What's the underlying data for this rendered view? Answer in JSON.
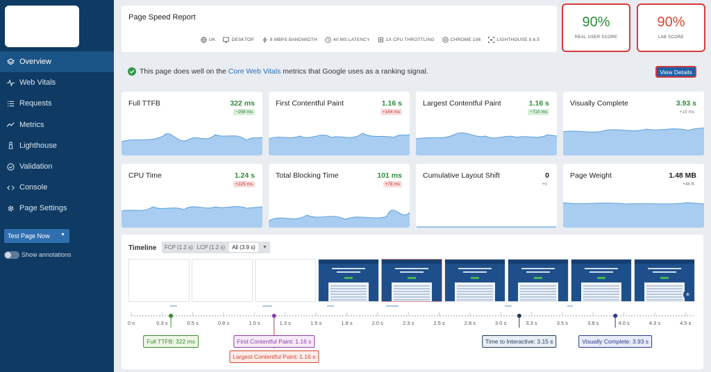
{
  "sidebar": {
    "items": [
      {
        "label": "Overview",
        "icon": "layers-icon",
        "active": true
      },
      {
        "label": "Web Vitals",
        "icon": "pulse-icon"
      },
      {
        "label": "Requests",
        "icon": "list-icon"
      },
      {
        "label": "Metrics",
        "icon": "trend-icon"
      },
      {
        "label": "Lighthouse",
        "icon": "lighthouse-icon"
      },
      {
        "label": "Validation",
        "icon": "check-circle-icon"
      },
      {
        "label": "Console",
        "icon": "code-icon"
      },
      {
        "label": "Page Settings",
        "icon": "gear-icon"
      }
    ],
    "test_button": "Test Page Now",
    "annotations_label": "Show annotations"
  },
  "header": {
    "title": "Page Speed Report",
    "env": [
      {
        "label": "UK",
        "icon": "globe-icon"
      },
      {
        "label": "DESKTOP",
        "icon": "monitor-icon"
      },
      {
        "label": "8 MBPS BANDWIDTH",
        "icon": "bolt-icon"
      },
      {
        "label": "40 MS LATENCY",
        "icon": "clock-icon"
      },
      {
        "label": "1X CPU THROTTLING",
        "icon": "cpu-icon"
      },
      {
        "label": "CHROME 106",
        "icon": "chrome-icon"
      },
      {
        "label": "LIGHTHOUSE 9.6.5",
        "icon": "scan-icon"
      }
    ]
  },
  "scores": {
    "real_user": {
      "value": "90%",
      "label": "REAL USER SCORE",
      "color": "#2e8b3a"
    },
    "lab": {
      "value": "90%",
      "label": "LAB SCORE",
      "color": "#d2462e"
    }
  },
  "banner": {
    "before": "This page does well on the ",
    "link": "Core Web Vitals",
    "after": " metrics that Google uses as a ranking signal.",
    "button": "View Details"
  },
  "metrics": [
    {
      "name": "Full TTFB",
      "value": "322 ms",
      "delta": "−259 ms",
      "delta_type": "good"
    },
    {
      "name": "First Contentful Paint",
      "value": "1.16 s",
      "delta": "+164 ms",
      "delta_type": "bad"
    },
    {
      "name": "Largest Contentful Paint",
      "value": "1.16 s",
      "delta": "−710 ms",
      "delta_type": "good"
    },
    {
      "name": "Visually Complete",
      "value": "3.93 s",
      "delta": "+19 ms",
      "delta_type": "plain"
    },
    {
      "name": "CPU Time",
      "value": "1.24 s",
      "delta": "+225 ms",
      "delta_type": "bad"
    },
    {
      "name": "Total Blocking Time",
      "value": "101 ms",
      "delta": "+78 ms",
      "delta_type": "bad"
    },
    {
      "name": "Cumulative Layout Shift",
      "value": "0",
      "delta": "+0",
      "delta_type": "plain"
    },
    {
      "name": "Page Weight",
      "value": "1.48 MB",
      "delta": "+48 B",
      "delta_type": "plain"
    }
  ],
  "timeline": {
    "title": "Timeline",
    "filters": [
      "FCP (1.2 s)",
      "LCP (1.2 s)",
      "All (3.9 s)"
    ],
    "ticks": [
      "0 s",
      "0.3 s",
      "0.5 s",
      "0.8 s",
      "1.0 s",
      "1.3 s",
      "1.5 s",
      "1.8 s",
      "2.0 s",
      "2.3 s",
      "2.5 s",
      "2.8 s",
      "3.0 s",
      "3.3 s",
      "3.5 s",
      "3.8 s",
      "4.0 s",
      "4.3 s",
      "4.5 s"
    ],
    "markers": [
      {
        "label": "Full TTFB: 322 ms",
        "time": 0.322,
        "color": "#3c8a2e",
        "bg": "#eef7e6",
        "row": 0
      },
      {
        "label": "First Contentful Paint: 1.16 s",
        "time": 1.16,
        "color": "#8a3fa6",
        "bg": "#f6eaf9",
        "row": 0
      },
      {
        "label": "Largest Contentful Paint: 1.16 s",
        "time": 1.16,
        "color": "#d2462e",
        "bg": "#fdecea",
        "row": 1
      },
      {
        "label": "Time to Interactive: 3.15 s",
        "time": 3.15,
        "color": "#1f3a5a",
        "bg": "#e8eef5",
        "row": 0
      },
      {
        "label": "Visually Complete: 3.93 s",
        "time": 3.93,
        "color": "#2a3a8f",
        "bg": "#e9ecf8",
        "row": 0
      }
    ]
  }
}
